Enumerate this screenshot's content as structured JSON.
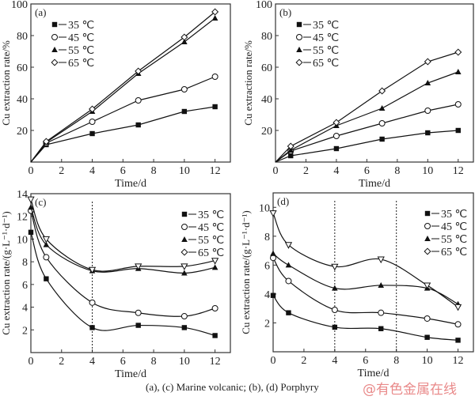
{
  "caption": "(a), (c) Marine volcanic; (b), (d) Porphyry",
  "watermark": "@有色金属在线",
  "colors": {
    "line": "#111111",
    "axis": "#333333",
    "background": "#ffffff",
    "watermark": "#e98a8a"
  },
  "chart_data": [
    {
      "id": "a",
      "type": "line",
      "panel_label": "(a)",
      "title": "",
      "xlabel": "Time/d",
      "ylabel": "Cu extraction rate/%",
      "xlim": [
        0,
        13
      ],
      "ylim": [
        0,
        100
      ],
      "xticks": [
        0,
        2,
        4,
        6,
        8,
        10,
        12
      ],
      "yticks": [
        20,
        40,
        60,
        80,
        100
      ],
      "ytick_labels_include_zero": false,
      "smooth": false,
      "grid": false,
      "legend_position": "top-left",
      "vlines": [],
      "x": [
        0,
        1,
        4,
        7,
        10,
        12
      ],
      "series": [
        {
          "name": "35 ℃",
          "marker": "square-filled",
          "values": [
            0,
            11,
            18,
            23.5,
            32,
            35
          ]
        },
        {
          "name": "45 ℃",
          "marker": "circle-open",
          "values": [
            0,
            12,
            25.5,
            39,
            46,
            54
          ]
        },
        {
          "name": "55 ℃",
          "marker": "triangle-filled",
          "values": [
            0,
            12.5,
            32,
            56,
            76,
            91
          ]
        },
        {
          "name": "65 ℃",
          "marker": "diamond-open",
          "values": [
            0,
            13,
            33.5,
            57.5,
            79,
            95
          ]
        }
      ]
    },
    {
      "id": "b",
      "type": "line",
      "panel_label": "(b)",
      "title": "",
      "xlabel": "Time/d",
      "ylabel": "Cu extraction rate/%",
      "xlim": [
        0,
        13
      ],
      "ylim": [
        0,
        100
      ],
      "xticks": [
        0,
        2,
        4,
        6,
        8,
        10,
        12
      ],
      "yticks": [
        20,
        40,
        60,
        80,
        100
      ],
      "ytick_labels_include_zero": false,
      "smooth": false,
      "grid": false,
      "legend_position": "top-left",
      "vlines": [],
      "x": [
        0,
        1,
        4,
        7,
        10,
        12
      ],
      "series": [
        {
          "name": "35 ℃",
          "marker": "square-filled",
          "values": [
            0,
            4,
            8.5,
            14.5,
            18.5,
            20
          ]
        },
        {
          "name": "45 ℃",
          "marker": "circle-open",
          "values": [
            0,
            7,
            16.5,
            24.5,
            32.5,
            36.5
          ]
        },
        {
          "name": "55 ℃",
          "marker": "triangle-filled",
          "values": [
            0,
            7.5,
            23,
            34,
            50,
            57
          ]
        },
        {
          "name": "65 ℃",
          "marker": "diamond-open",
          "values": [
            0,
            10,
            25,
            45,
            63.5,
            69.5
          ]
        }
      ]
    },
    {
      "id": "c",
      "type": "line",
      "panel_label": "(c)",
      "title": "",
      "xlabel": "Time/d",
      "ylabel": "Cu extraction rate/(g·L⁻¹·d⁻¹)",
      "xlim": [
        0,
        13
      ],
      "ylim": [
        0,
        14
      ],
      "xticks": [
        0,
        2,
        4,
        6,
        8,
        10,
        12
      ],
      "yticks": [
        2,
        4,
        6,
        8,
        10,
        12,
        14
      ],
      "ytick_labels_include_zero": false,
      "smooth": true,
      "grid": false,
      "legend_position": "top-right",
      "vlines": [
        4
      ],
      "x": [
        0,
        1,
        4,
        7,
        10,
        12
      ],
      "series": [
        {
          "name": "35 ℃",
          "marker": "square-filled",
          "values": [
            10.6,
            6.5,
            2.2,
            2.4,
            2.2,
            1.5
          ]
        },
        {
          "name": "45 ℃",
          "marker": "circle-open",
          "values": [
            12.5,
            8.4,
            4.4,
            3.5,
            3.2,
            3.9
          ]
        },
        {
          "name": "55 ℃",
          "marker": "triangle-filled",
          "values": [
            12.8,
            9.5,
            7.2,
            7.4,
            7.0,
            7.5
          ]
        },
        {
          "name": "65 ℃",
          "marker": "triangle-down-open",
          "legend_marker": "diamond-open",
          "values": [
            13.5,
            10.0,
            7.3,
            7.6,
            7.6,
            8.1
          ]
        }
      ]
    },
    {
      "id": "d",
      "type": "line",
      "panel_label": "(d)",
      "title": "",
      "xlabel": "Time/d",
      "ylabel": "Cu extraction rate/(g·L⁻¹·d⁻¹)",
      "xlim": [
        0,
        13
      ],
      "ylim": [
        0,
        11
      ],
      "xticks": [
        0,
        2,
        4,
        6,
        8,
        10,
        12
      ],
      "yticks": [
        2,
        4,
        6,
        8,
        10
      ],
      "ytick_labels_include_zero": false,
      "smooth": true,
      "grid": false,
      "legend_position": "top-right",
      "vlines": [
        4,
        8
      ],
      "x": [
        0,
        1,
        4,
        7,
        10,
        12
      ],
      "series": [
        {
          "name": "35 ℃",
          "marker": "square-filled",
          "values": [
            3.9,
            2.7,
            1.7,
            1.6,
            1.0,
            0.8
          ]
        },
        {
          "name": "45 ℃",
          "marker": "circle-open",
          "values": [
            6.5,
            4.9,
            2.9,
            2.7,
            2.3,
            1.9
          ]
        },
        {
          "name": "55 ℃",
          "marker": "triangle-filled",
          "values": [
            6.8,
            6.0,
            4.4,
            4.6,
            4.4,
            3.3
          ]
        },
        {
          "name": "65 ℃",
          "marker": "triangle-down-open",
          "legend_marker": "diamond-open",
          "values": [
            9.6,
            7.4,
            5.9,
            6.4,
            4.6,
            3.1
          ]
        }
      ]
    }
  ]
}
